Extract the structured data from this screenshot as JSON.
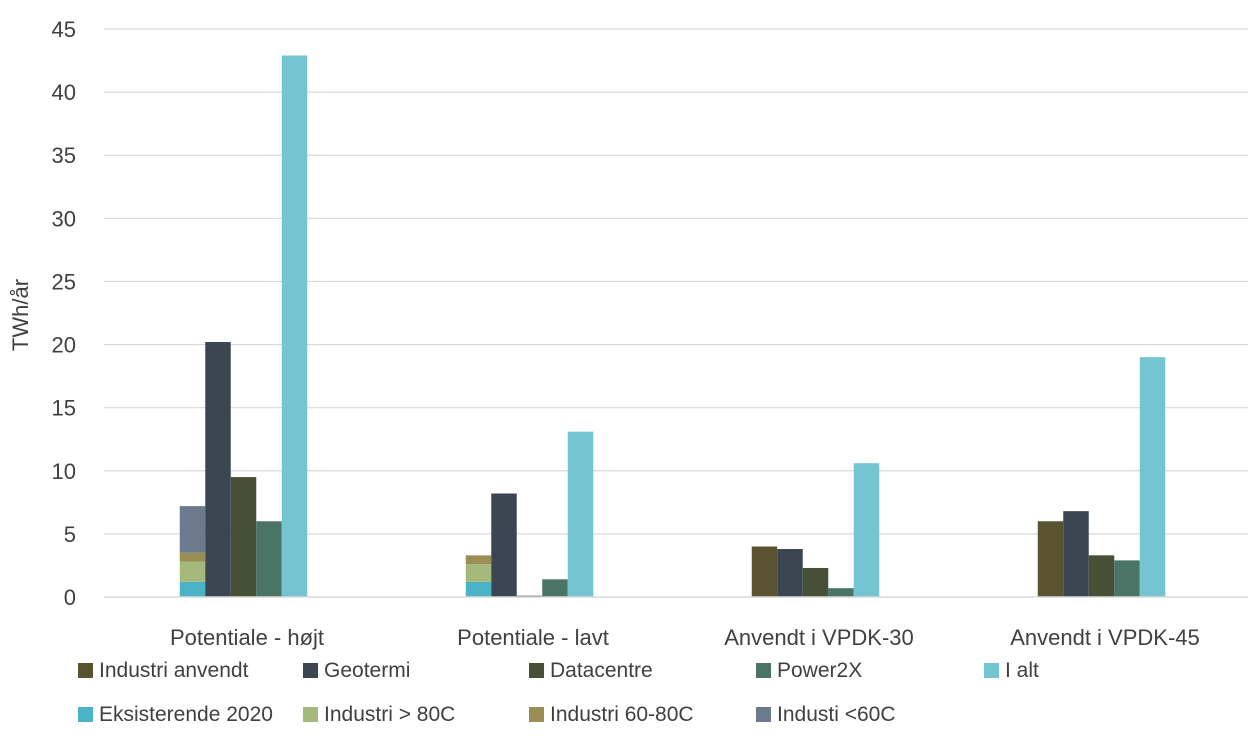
{
  "chart_data": {
    "type": "bar",
    "ylabel": "TWh/år",
    "xlabel": "",
    "ylim": [
      0,
      45
    ],
    "yticks": [
      0,
      5,
      10,
      15,
      20,
      25,
      30,
      35,
      40,
      45
    ],
    "grid": true,
    "legend_position": "bottom",
    "categories": [
      "Potentiale - højt",
      "Potentiale - lavt",
      "Anvendt i VPDK-30",
      "Anvendt i VPDK-45"
    ],
    "stack_components": [
      {
        "name": "Eksisterende 2020",
        "color": "#4bb3c6",
        "values": [
          1.2,
          1.2,
          0,
          0
        ]
      },
      {
        "name": "Industri > 80C",
        "color": "#a6b97c",
        "values": [
          1.6,
          1.4,
          0,
          0
        ]
      },
      {
        "name": "Industri 60-80C",
        "color": "#9b8e52",
        "values": [
          0.7,
          0.7,
          0,
          0
        ]
      },
      {
        "name": "Industi <60C",
        "color": "#6b7a8c",
        "values": [
          3.7,
          0,
          0,
          0
        ]
      }
    ],
    "series": [
      {
        "name": "Industri anvendt",
        "color": "#5a5330",
        "values": [
          0,
          0,
          4.0,
          6.0
        ]
      },
      {
        "name": "Geotermi",
        "color": "#3b4652",
        "values": [
          20.2,
          8.2,
          3.8,
          6.8
        ]
      },
      {
        "name": "Datacentre",
        "color": "#474f36",
        "values": [
          9.5,
          0.1,
          2.3,
          3.3
        ]
      },
      {
        "name": "Power2X",
        "color": "#4a7466",
        "values": [
          6.0,
          1.4,
          0.7,
          2.9
        ]
      },
      {
        "name": "I alt",
        "color": "#74c4d2",
        "values": [
          42.9,
          13.1,
          10.6,
          19.0
        ]
      }
    ]
  },
  "legend": {
    "row1": [
      {
        "label": "Industri anvendt",
        "color": "#5a5330"
      },
      {
        "label": "Geotermi",
        "color": "#3b4652"
      },
      {
        "label": "Datacentre",
        "color": "#474f36"
      },
      {
        "label": "Power2X",
        "color": "#4a7466"
      },
      {
        "label": "I alt",
        "color": "#74c4d2"
      }
    ],
    "row2": [
      {
        "label": "Eksisterende 2020",
        "color": "#4bb3c6"
      },
      {
        "label": "Industri > 80C",
        "color": "#a6b97c"
      },
      {
        "label": "Industri 60-80C",
        "color": "#9b8e52"
      },
      {
        "label": "Industi <60C",
        "color": "#6b7a8c"
      }
    ]
  }
}
